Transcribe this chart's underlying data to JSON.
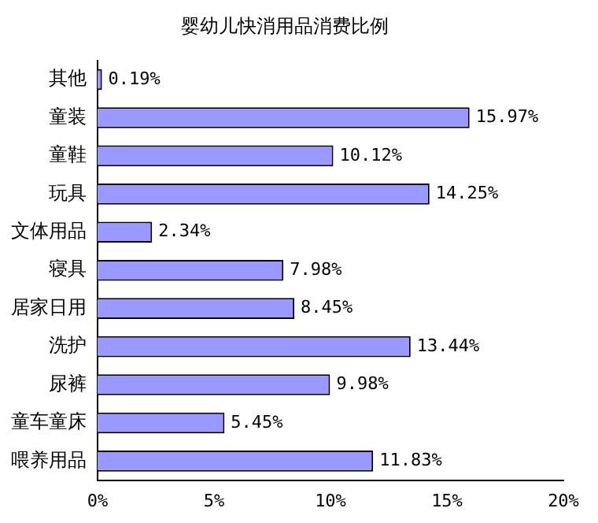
{
  "chart_data": {
    "type": "bar",
    "orientation": "horizontal",
    "title": "婴幼儿快消用品消费比例",
    "categories": [
      "其他",
      "童装",
      "童鞋",
      "玩具",
      "文体用品",
      "寝具",
      "居家日用",
      "洗护",
      "尿裤",
      "童车童床",
      "喂养用品"
    ],
    "values": [
      0.19,
      15.97,
      10.12,
      14.25,
      2.34,
      7.98,
      8.45,
      13.44,
      9.98,
      5.45,
      11.83
    ],
    "value_labels": [
      "0.19%",
      "15.97%",
      "10.12%",
      "14.25%",
      "2.34%",
      "7.98%",
      "8.45%",
      "13.44%",
      "9.98%",
      "5.45%",
      "11.83%"
    ],
    "color": "#9999ff",
    "xlim": [
      0,
      20
    ],
    "xticks": [
      {
        "value": 0,
        "label": "0%"
      },
      {
        "value": 5,
        "label": "5%"
      },
      {
        "value": 10,
        "label": "10%"
      },
      {
        "value": 15,
        "label": "15%"
      },
      {
        "value": 20,
        "label": "20%"
      }
    ],
    "grid": false,
    "legend": false
  }
}
